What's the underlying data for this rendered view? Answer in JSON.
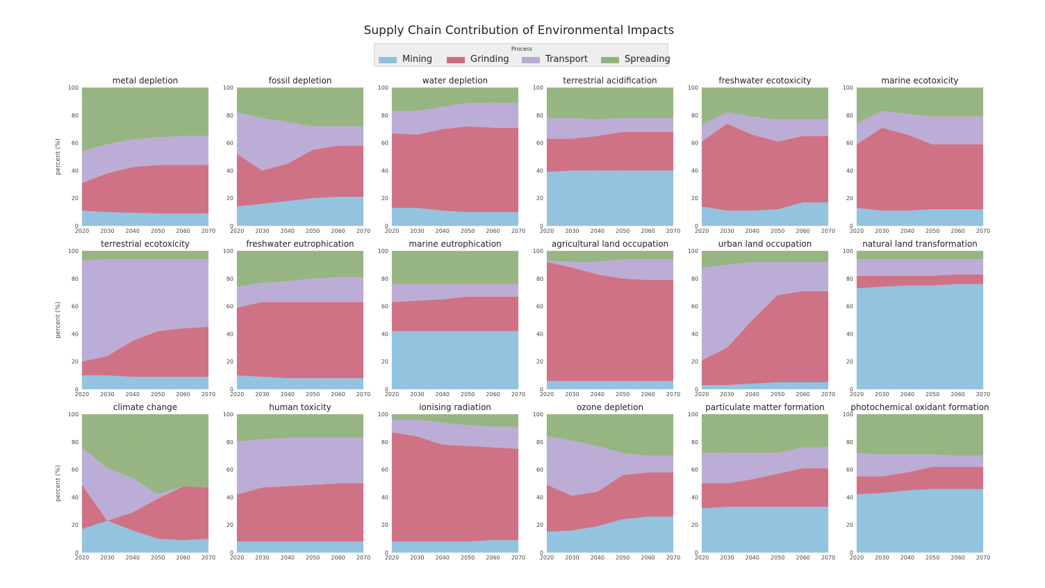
{
  "chart_data": {
    "type": "area",
    "title": "Supply Chain Contribution of Environmental Impacts",
    "legend": {
      "title": "Process",
      "placement": "top-center",
      "entries": [
        "Mining",
        "Grinding",
        "Transport",
        "Spreading"
      ]
    },
    "colors": {
      "Mining": "#8fc1de",
      "Grinding": "#cf6b80",
      "Transport": "#b8aad4",
      "Spreading": "#92b27c",
      "plot_bg": "#e5e5e5"
    },
    "x": [
      2020,
      2030,
      2040,
      2050,
      2060,
      2070
    ],
    "ylabel": "percent (%)",
    "ylim": [
      0,
      100
    ],
    "yticks": [
      0,
      20,
      40,
      60,
      80,
      100
    ],
    "panels": [
      {
        "title": "metal depletion",
        "series": [
          {
            "name": "Mining",
            "values": [
              11,
              10,
              9.5,
              9,
              9,
              9
            ]
          },
          {
            "name": "Grinding",
            "values": [
              20,
              28,
              33,
              35,
              35,
              35
            ]
          },
          {
            "name": "Transport",
            "values": [
              23,
              21,
              20,
              20,
              21,
              21
            ]
          },
          {
            "name": "Spreading",
            "values": [
              46,
              41,
              37.5,
              36,
              35,
              35
            ]
          }
        ]
      },
      {
        "title": "fossil depletion",
        "series": [
          {
            "name": "Mining",
            "values": [
              14,
              16,
              18,
              20,
              21,
              21
            ]
          },
          {
            "name": "Grinding",
            "values": [
              38,
              24,
              27,
              35,
              37,
              37
            ]
          },
          {
            "name": "Transport",
            "values": [
              30,
              38,
              30,
              17,
              14,
              14
            ]
          },
          {
            "name": "Spreading",
            "values": [
              18,
              22,
              25,
              28,
              28,
              28
            ]
          }
        ]
      },
      {
        "title": "water depletion",
        "series": [
          {
            "name": "Mining",
            "values": [
              13,
              13,
              11,
              10,
              10,
              10
            ]
          },
          {
            "name": "Grinding",
            "values": [
              54,
              53,
              59,
              62,
              61,
              61
            ]
          },
          {
            "name": "Transport",
            "values": [
              16,
              17,
              16,
              17,
              18,
              18
            ]
          },
          {
            "name": "Spreading",
            "values": [
              17,
              17,
              14,
              11,
              11,
              11
            ]
          }
        ]
      },
      {
        "title": "terrestrial acidification",
        "series": [
          {
            "name": "Mining",
            "values": [
              39,
              40,
              40,
              40,
              40,
              40
            ]
          },
          {
            "name": "Grinding",
            "values": [
              24,
              23,
              25,
              28,
              28,
              28
            ]
          },
          {
            "name": "Transport",
            "values": [
              15,
              15,
              12,
              10,
              10,
              10
            ]
          },
          {
            "name": "Spreading",
            "values": [
              22,
              22,
              23,
              22,
              22,
              22
            ]
          }
        ]
      },
      {
        "title": "freshwater ecotoxicity",
        "series": [
          {
            "name": "Mining",
            "values": [
              14,
              11,
              11,
              12,
              17,
              17
            ]
          },
          {
            "name": "Grinding",
            "values": [
              47,
              63,
              55,
              49,
              48,
              48
            ]
          },
          {
            "name": "Transport",
            "values": [
              12,
              8,
              13,
              16,
              12,
              12
            ]
          },
          {
            "name": "Spreading",
            "values": [
              27,
              18,
              21,
              23,
              23,
              23
            ]
          }
        ]
      },
      {
        "title": "marine ecotoxicity",
        "series": [
          {
            "name": "Mining",
            "values": [
              13,
              11,
              11,
              12,
              12,
              12
            ]
          },
          {
            "name": "Grinding",
            "values": [
              46,
              60,
              55,
              47,
              47,
              47
            ]
          },
          {
            "name": "Transport",
            "values": [
              15,
              12,
              15,
              20,
              20,
              20
            ]
          },
          {
            "name": "Spreading",
            "values": [
              26,
              17,
              19,
              21,
              21,
              21
            ]
          }
        ]
      },
      {
        "title": "terrestrial ecotoxicity",
        "series": [
          {
            "name": "Mining",
            "values": [
              10,
              10,
              9,
              9,
              9,
              9
            ]
          },
          {
            "name": "Grinding",
            "values": [
              10,
              14,
              26,
              33,
              35,
              36
            ]
          },
          {
            "name": "Transport",
            "values": [
              73,
              70,
              59,
              52,
              50,
              49
            ]
          },
          {
            "name": "Spreading",
            "values": [
              7,
              6,
              6,
              6,
              6,
              6
            ]
          }
        ]
      },
      {
        "title": "freshwater eutrophication",
        "series": [
          {
            "name": "Mining",
            "values": [
              10,
              9,
              8,
              8,
              8,
              8
            ]
          },
          {
            "name": "Grinding",
            "values": [
              49,
              54,
              55,
              55,
              55,
              55
            ]
          },
          {
            "name": "Transport",
            "values": [
              15,
              14,
              15,
              17,
              18,
              18
            ]
          },
          {
            "name": "Spreading",
            "values": [
              26,
              23,
              22,
              20,
              19,
              19
            ]
          }
        ]
      },
      {
        "title": "marine eutrophication",
        "series": [
          {
            "name": "Mining",
            "values": [
              42,
              42,
              42,
              42,
              42,
              42
            ]
          },
          {
            "name": "Grinding",
            "values": [
              21,
              22,
              23,
              25,
              25,
              25
            ]
          },
          {
            "name": "Transport",
            "values": [
              13,
              12,
              11,
              9,
              9,
              9
            ]
          },
          {
            "name": "Spreading",
            "values": [
              24,
              24,
              24,
              24,
              24,
              24
            ]
          }
        ]
      },
      {
        "title": "agricultural land occupation",
        "series": [
          {
            "name": "Mining",
            "values": [
              6,
              6,
              6,
              6,
              6,
              6
            ]
          },
          {
            "name": "Grinding",
            "values": [
              86,
              82,
              77,
              74,
              73,
              73
            ]
          },
          {
            "name": "Transport",
            "values": [
              1,
              4,
              9,
              14,
              15,
              15
            ]
          },
          {
            "name": "Spreading",
            "values": [
              7,
              8,
              8,
              6,
              6,
              6
            ]
          }
        ]
      },
      {
        "title": "urban land occupation",
        "series": [
          {
            "name": "Mining",
            "values": [
              3,
              3,
              4,
              5,
              5,
              5
            ]
          },
          {
            "name": "Grinding",
            "values": [
              18,
              27,
              46,
              63,
              66,
              66
            ]
          },
          {
            "name": "Transport",
            "values": [
              67,
              60,
              42,
              24,
              21,
              21
            ]
          },
          {
            "name": "Spreading",
            "values": [
              12,
              10,
              8,
              8,
              8,
              8
            ]
          }
        ]
      },
      {
        "title": "natural land transformation",
        "series": [
          {
            "name": "Mining",
            "values": [
              73,
              74,
              75,
              75,
              76,
              76
            ]
          },
          {
            "name": "Grinding",
            "values": [
              9,
              8,
              7,
              7,
              7,
              7
            ]
          },
          {
            "name": "Transport",
            "values": [
              12,
              12,
              12,
              12,
              11,
              11
            ]
          },
          {
            "name": "Spreading",
            "values": [
              6,
              6,
              6,
              6,
              6,
              6
            ]
          }
        ]
      },
      {
        "title": "climate change",
        "series": [
          {
            "name": "Mining",
            "values": [
              17,
              23,
              16,
              10,
              9,
              10
            ]
          },
          {
            "name": "Grinding",
            "values": [
              32,
              0,
              13,
              29,
              39,
              37
            ]
          },
          {
            "name": "Transport",
            "values": [
              27,
              38,
              25,
              3,
              0,
              0
            ]
          },
          {
            "name": "Spreading",
            "values": [
              24,
              39,
              46,
              58,
              52,
              53
            ]
          }
        ]
      },
      {
        "title": "human toxicity",
        "series": [
          {
            "name": "Mining",
            "values": [
              8,
              8,
              8,
              8,
              8,
              8
            ]
          },
          {
            "name": "Grinding",
            "values": [
              34,
              39,
              40,
              41,
              42,
              42
            ]
          },
          {
            "name": "Transport",
            "values": [
              38,
              35,
              35,
              34,
              33,
              33
            ]
          },
          {
            "name": "Spreading",
            "values": [
              20,
              18,
              17,
              17,
              17,
              17
            ]
          }
        ]
      },
      {
        "title": "ionising radiation",
        "series": [
          {
            "name": "Mining",
            "values": [
              8,
              8,
              8,
              8,
              9,
              9
            ]
          },
          {
            "name": "Grinding",
            "values": [
              79,
              76,
              70,
              69,
              67,
              66
            ]
          },
          {
            "name": "Transport",
            "values": [
              9,
              12,
              16,
              15,
              15,
              16
            ]
          },
          {
            "name": "Spreading",
            "values": [
              4,
              4,
              6,
              8,
              9,
              9
            ]
          }
        ]
      },
      {
        "title": "ozone depletion",
        "series": [
          {
            "name": "Mining",
            "values": [
              15,
              16,
              19,
              24,
              26,
              26
            ]
          },
          {
            "name": "Grinding",
            "values": [
              34,
              25,
              25,
              32,
              32,
              32
            ]
          },
          {
            "name": "Transport",
            "values": [
              35,
              40,
              33,
              16,
              12,
              12
            ]
          },
          {
            "name": "Spreading",
            "values": [
              16,
              19,
              23,
              28,
              30,
              30
            ]
          }
        ]
      },
      {
        "title": "particulate matter formation",
        "series": [
          {
            "name": "Mining",
            "values": [
              32,
              33,
              33,
              33,
              33,
              33
            ]
          },
          {
            "name": "Grinding",
            "values": [
              18,
              17,
              20,
              24,
              28,
              28
            ]
          },
          {
            "name": "Transport",
            "values": [
              22,
              22,
              19,
              15,
              15,
              15
            ]
          },
          {
            "name": "Spreading",
            "values": [
              28,
              28,
              28,
              28,
              24,
              24
            ]
          }
        ]
      },
      {
        "title": "photochemical oxidant formation",
        "series": [
          {
            "name": "Mining",
            "values": [
              42,
              43,
              45,
              46,
              46,
              46
            ]
          },
          {
            "name": "Grinding",
            "values": [
              13,
              12,
              13,
              16,
              16,
              16
            ]
          },
          {
            "name": "Transport",
            "values": [
              17,
              16,
              13,
              9,
              8,
              8
            ]
          },
          {
            "name": "Spreading",
            "values": [
              28,
              29,
              29,
              29,
              30,
              30
            ]
          }
        ]
      }
    ]
  }
}
